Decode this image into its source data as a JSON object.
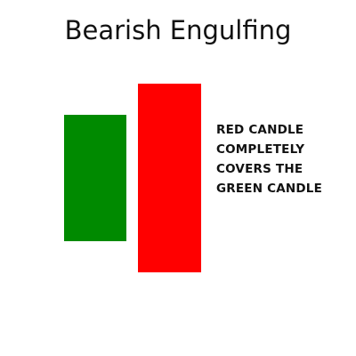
{
  "title": "Bearish Engulfing",
  "candles": {
    "green": {
      "color": "#008a00"
    },
    "red": {
      "color": "#ff0000"
    }
  },
  "annotation": {
    "lines": [
      "RED CANDLE",
      "COMPLETELY",
      "COVERS THE",
      "GREEN CANDLE"
    ]
  }
}
